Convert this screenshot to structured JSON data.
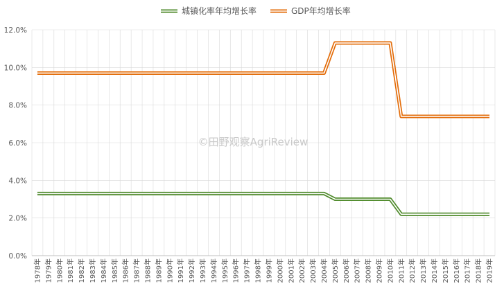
{
  "watermark": "©田野观察AgriReview",
  "colors": {
    "urban": "#4f8a2b",
    "gdp": "#e36c09",
    "grid": "#d9d9d9",
    "axis": "#bfbfbf"
  },
  "chart_data": {
    "type": "line",
    "title": "",
    "xlabel": "",
    "ylabel": "",
    "ylim": [
      0,
      12
    ],
    "y_ticks": [
      "0.0%",
      "2.0%",
      "4.0%",
      "6.0%",
      "8.0%",
      "10.0%",
      "12.0%"
    ],
    "grid": true,
    "legend": "top-center",
    "x": [
      "1978年",
      "1979年",
      "1980年",
      "1981年",
      "1982年",
      "1983年",
      "1984年",
      "1985年",
      "1986年",
      "1987年",
      "1988年",
      "1989年",
      "1990年",
      "1991年",
      "1992年",
      "1993年",
      "1994年",
      "1995年",
      "1996年",
      "1997年",
      "1998年",
      "1999年",
      "2000年",
      "2001年",
      "2002年",
      "2003年",
      "2004年",
      "2005年",
      "2006年",
      "2007年",
      "2008年",
      "2009年",
      "2010年",
      "2011年",
      "2012年",
      "2013年",
      "2014年",
      "2015年",
      "2016年",
      "2017年",
      "2018年",
      "2019年"
    ],
    "series": [
      {
        "name": "城镇化率年均增长率",
        "color": "#4f8a2b",
        "values": [
          3.3,
          3.3,
          3.3,
          3.3,
          3.3,
          3.3,
          3.3,
          3.3,
          3.3,
          3.3,
          3.3,
          3.3,
          3.3,
          3.3,
          3.3,
          3.3,
          3.3,
          3.3,
          3.3,
          3.3,
          3.3,
          3.3,
          3.3,
          3.3,
          3.3,
          3.3,
          3.3,
          3.0,
          3.0,
          3.0,
          3.0,
          3.0,
          3.0,
          2.2,
          2.2,
          2.2,
          2.2,
          2.2,
          2.2,
          2.2,
          2.2,
          2.2
        ]
      },
      {
        "name": "GDP年均增长率",
        "color": "#e36c09",
        "values": [
          9.7,
          9.7,
          9.7,
          9.7,
          9.7,
          9.7,
          9.7,
          9.7,
          9.7,
          9.7,
          9.7,
          9.7,
          9.7,
          9.7,
          9.7,
          9.7,
          9.7,
          9.7,
          9.7,
          9.7,
          9.7,
          9.7,
          9.7,
          9.7,
          9.7,
          9.7,
          9.7,
          11.3,
          11.3,
          11.3,
          11.3,
          11.3,
          11.3,
          7.4,
          7.4,
          7.4,
          7.4,
          7.4,
          7.4,
          7.4,
          7.4,
          7.4
        ]
      }
    ]
  }
}
